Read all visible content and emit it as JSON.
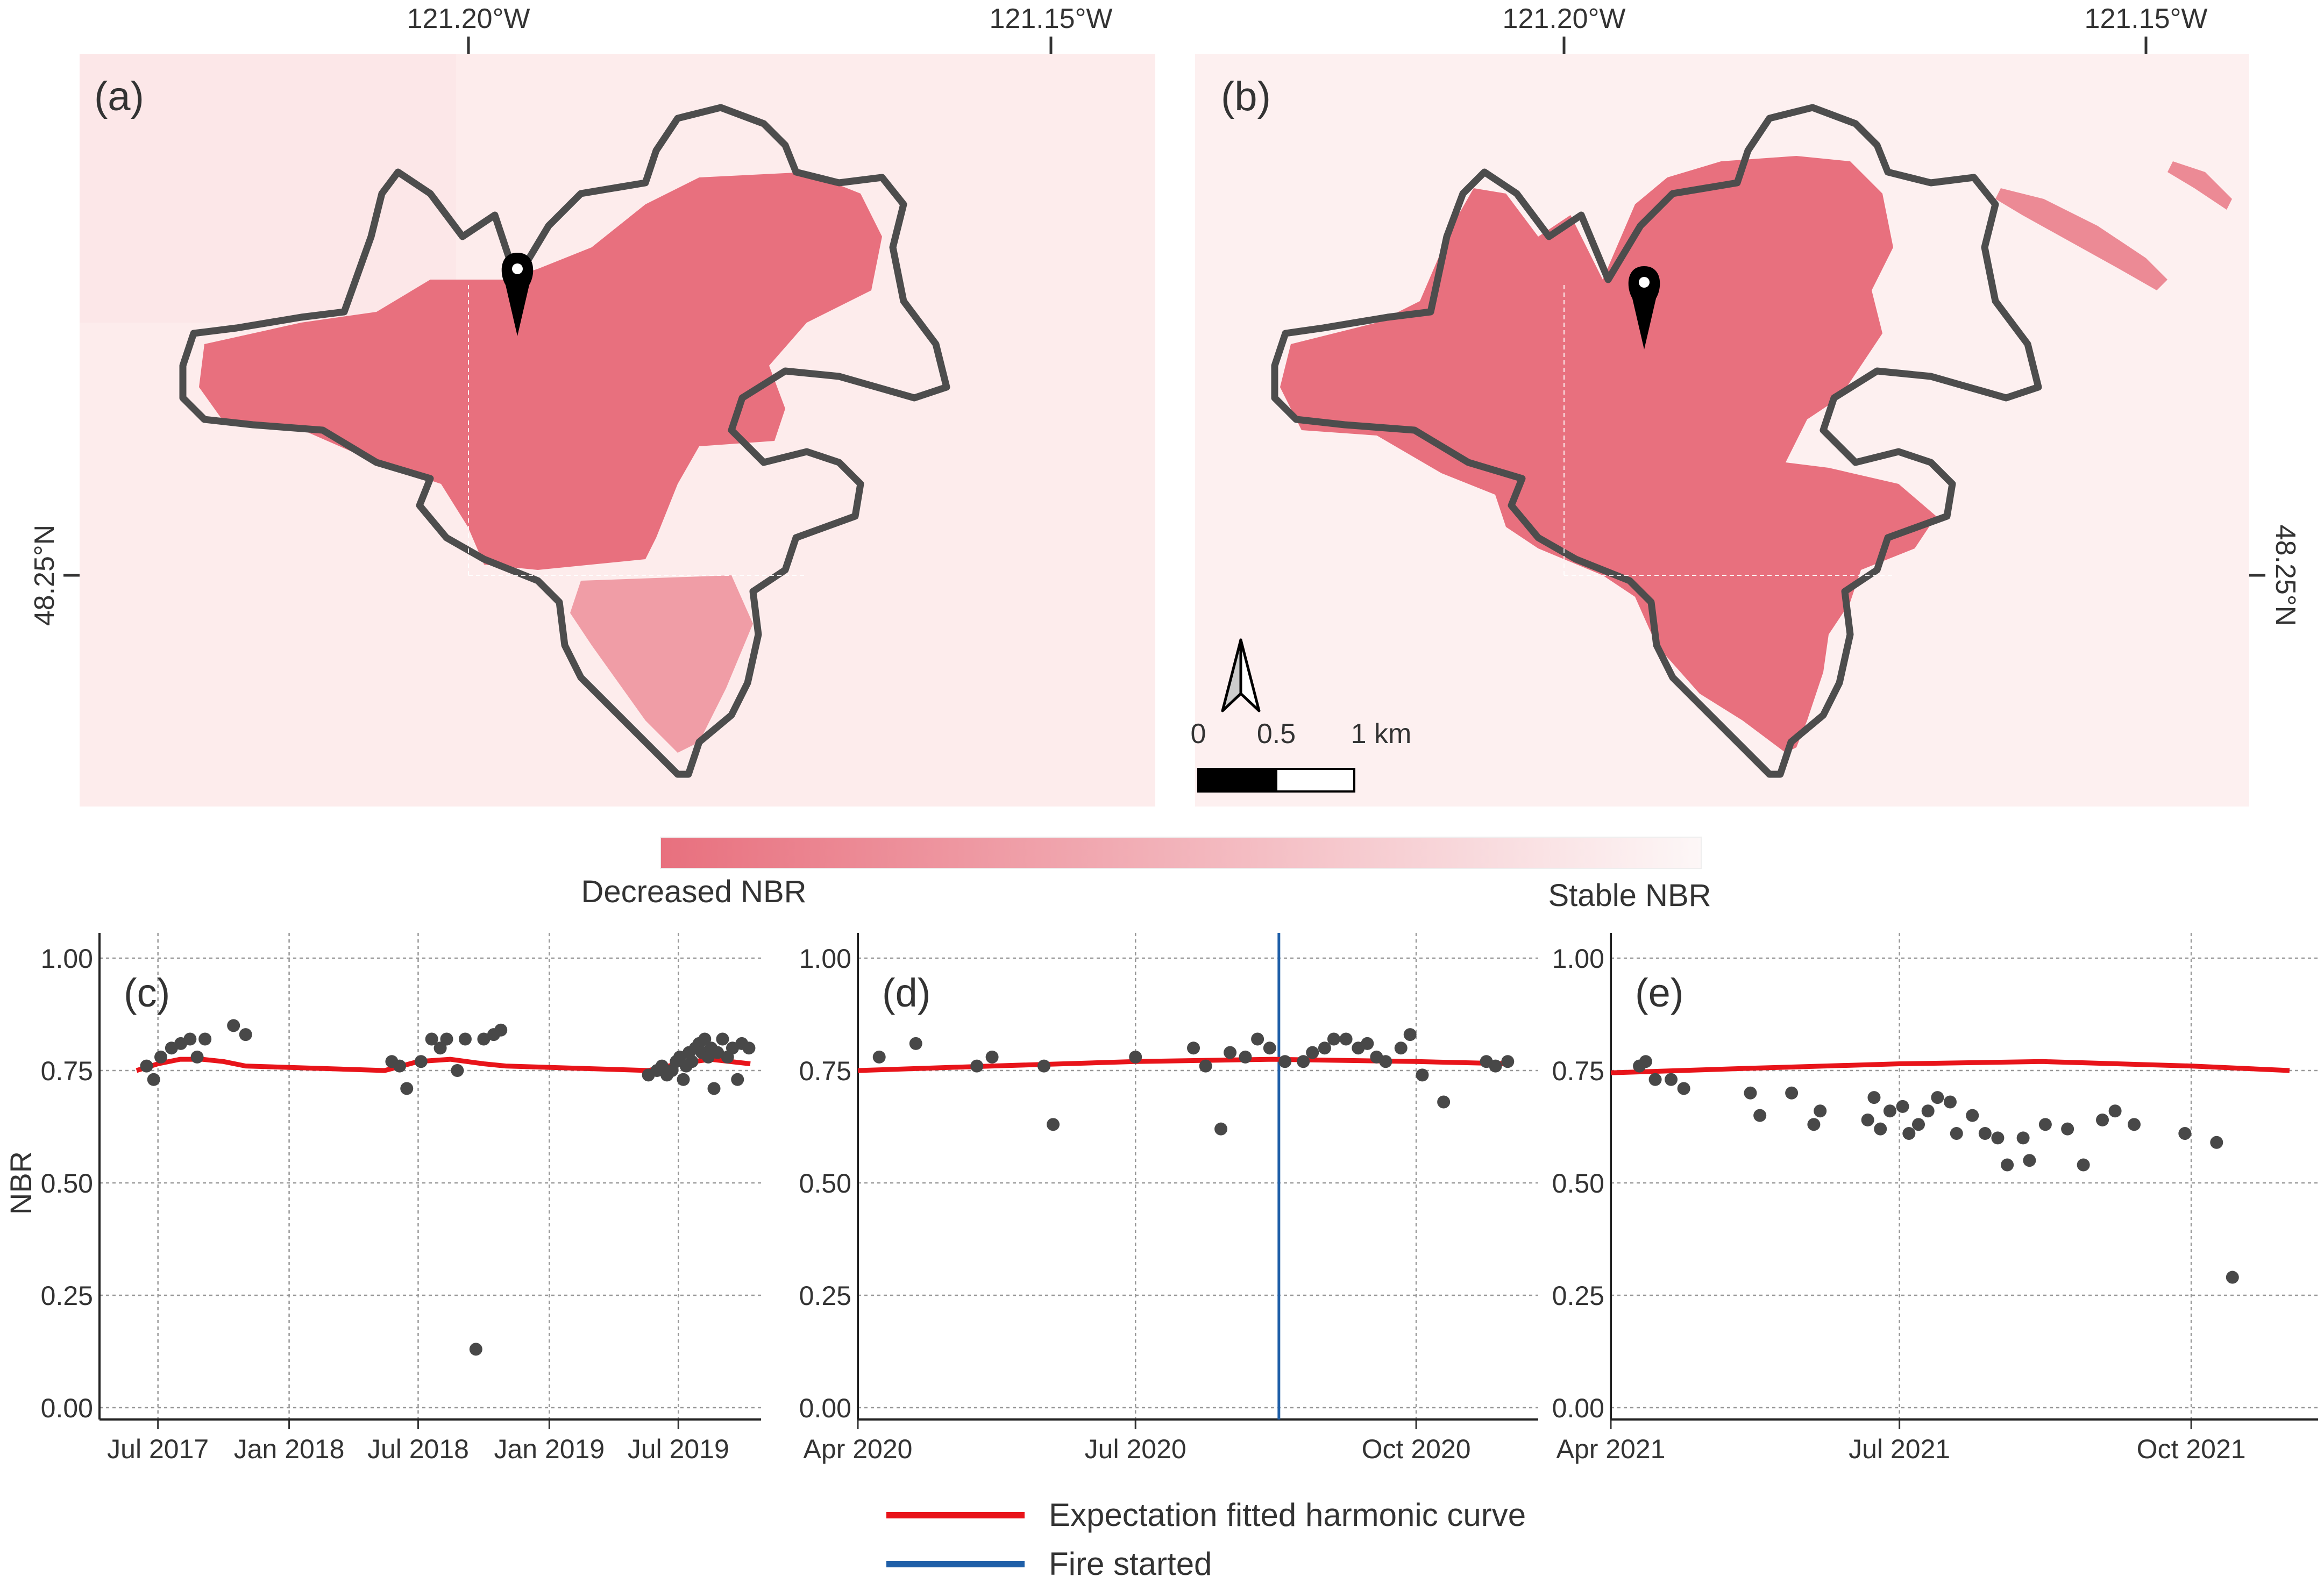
{
  "maps": [
    {
      "panel_label": "(a)",
      "lon_ticks": [
        "121.20°W",
        "121.15°W"
      ],
      "lat_tick": "48.25°N"
    },
    {
      "panel_label": "(b)",
      "lon_ticks": [
        "121.20°W",
        "121.15°W"
      ],
      "lat_tick": "48.25°N",
      "scalebar": {
        "labels": [
          "0",
          "0.5",
          "1 km"
        ]
      }
    }
  ],
  "colorbar": {
    "left_label": "Decreased NBR",
    "right_label": "Stable NBR",
    "color_low": "#e8707e",
    "color_high": "#fdf7f7"
  },
  "colors": {
    "fitted_curve": "#e8141a",
    "fire_line": "#1f5fa8",
    "points": "#484848",
    "burn": "#e8707e",
    "background_tint": "#fdecec"
  },
  "legend": {
    "items": [
      {
        "label": "Expectation fitted harmonic curve",
        "color": "#e8141a"
      },
      {
        "label": "Fire started",
        "color": "#1f5fa8"
      }
    ]
  },
  "chart_data": [
    {
      "panel_label": "(c)",
      "type": "scatter",
      "ylabel": "NBR",
      "ylim": [
        0,
        1
      ],
      "y_ticks": [
        "0.00",
        "0.25",
        "0.50",
        "0.75",
        "1.00"
      ],
      "x_range": [
        "2017-04-10",
        "2019-10-25"
      ],
      "x_ticks": [
        {
          "date": "2017-07-01",
          "label": "Jul 2017"
        },
        {
          "date": "2018-01-01",
          "label": "Jan 2018"
        },
        {
          "date": "2018-07-01",
          "label": "Jul 2018"
        },
        {
          "date": "2019-01-01",
          "label": "Jan 2019"
        },
        {
          "date": "2019-07-01",
          "label": "Jul 2019"
        }
      ],
      "grid": true,
      "points": [
        [
          "2017-06-15",
          0.76
        ],
        [
          "2017-06-25",
          0.73
        ],
        [
          "2017-07-05",
          0.78
        ],
        [
          "2017-07-20",
          0.8
        ],
        [
          "2017-08-02",
          0.81
        ],
        [
          "2017-08-15",
          0.82
        ],
        [
          "2017-08-25",
          0.78
        ],
        [
          "2017-09-05",
          0.82
        ],
        [
          "2017-10-15",
          0.85
        ],
        [
          "2017-11-01",
          0.83
        ],
        [
          "2018-05-25",
          0.77
        ],
        [
          "2018-06-05",
          0.76
        ],
        [
          "2018-06-15",
          0.71
        ],
        [
          "2018-07-05",
          0.77
        ],
        [
          "2018-07-20",
          0.82
        ],
        [
          "2018-08-01",
          0.8
        ],
        [
          "2018-08-10",
          0.82
        ],
        [
          "2018-08-25",
          0.75
        ],
        [
          "2018-09-05",
          0.82
        ],
        [
          "2018-09-20",
          0.13
        ],
        [
          "2018-10-01",
          0.82
        ],
        [
          "2018-10-15",
          0.83
        ],
        [
          "2018-10-25",
          0.84
        ],
        [
          "2019-05-20",
          0.74
        ],
        [
          "2019-06-01",
          0.75
        ],
        [
          "2019-06-08",
          0.76
        ],
        [
          "2019-06-15",
          0.74
        ],
        [
          "2019-06-22",
          0.75
        ],
        [
          "2019-06-28",
          0.77
        ],
        [
          "2019-07-03",
          0.78
        ],
        [
          "2019-07-08",
          0.73
        ],
        [
          "2019-07-12",
          0.76
        ],
        [
          "2019-07-16",
          0.79
        ],
        [
          "2019-07-20",
          0.77
        ],
        [
          "2019-07-25",
          0.8
        ],
        [
          "2019-07-30",
          0.81
        ],
        [
          "2019-08-03",
          0.79
        ],
        [
          "2019-08-07",
          0.82
        ],
        [
          "2019-08-12",
          0.78
        ],
        [
          "2019-08-16",
          0.8
        ],
        [
          "2019-08-20",
          0.71
        ],
        [
          "2019-08-25",
          0.79
        ],
        [
          "2019-09-01",
          0.82
        ],
        [
          "2019-09-08",
          0.78
        ],
        [
          "2019-09-15",
          0.8
        ],
        [
          "2019-09-22",
          0.73
        ],
        [
          "2019-09-28",
          0.81
        ],
        [
          "2019-10-08",
          0.8
        ]
      ],
      "fitted_curve": [
        [
          "2017-06-01",
          0.75
        ],
        [
          "2017-07-01",
          0.765
        ],
        [
          "2017-08-01",
          0.775
        ],
        [
          "2017-09-01",
          0.775
        ],
        [
          "2017-10-01",
          0.77
        ],
        [
          "2017-11-01",
          0.76
        ],
        [
          "2018-05-15",
          0.75
        ],
        [
          "2018-07-01",
          0.77
        ],
        [
          "2018-08-15",
          0.775
        ],
        [
          "2018-10-01",
          0.765
        ],
        [
          "2018-11-01",
          0.76
        ],
        [
          "2019-05-20",
          0.75
        ],
        [
          "2019-07-01",
          0.765
        ],
        [
          "2019-08-15",
          0.775
        ],
        [
          "2019-10-10",
          0.765
        ]
      ]
    },
    {
      "panel_label": "(d)",
      "type": "scatter",
      "ylim": [
        0,
        1
      ],
      "y_ticks": [
        "0.00",
        "0.25",
        "0.50",
        "0.75",
        "1.00"
      ],
      "x_range": [
        "2020-04-01",
        "2020-11-10"
      ],
      "x_ticks": [
        {
          "date": "2020-04-01",
          "label": "Apr 2020"
        },
        {
          "date": "2020-07-01",
          "label": "Jul 2020"
        },
        {
          "date": "2020-10-01",
          "label": "Oct 2020"
        }
      ],
      "grid": true,
      "fire_start": "2020-08-17",
      "points": [
        [
          "2020-04-08",
          0.78
        ],
        [
          "2020-04-20",
          0.81
        ],
        [
          "2020-05-10",
          0.76
        ],
        [
          "2020-05-15",
          0.78
        ],
        [
          "2020-06-01",
          0.76
        ],
        [
          "2020-06-04",
          0.63
        ],
        [
          "2020-07-01",
          0.78
        ],
        [
          "2020-07-20",
          0.8
        ],
        [
          "2020-07-24",
          0.76
        ],
        [
          "2020-07-29",
          0.62
        ],
        [
          "2020-08-01",
          0.79
        ],
        [
          "2020-08-06",
          0.78
        ],
        [
          "2020-08-10",
          0.82
        ],
        [
          "2020-08-14",
          0.8
        ],
        [
          "2020-08-19",
          0.77
        ],
        [
          "2020-08-25",
          0.77
        ],
        [
          "2020-08-28",
          0.79
        ],
        [
          "2020-09-01",
          0.8
        ],
        [
          "2020-09-04",
          0.82
        ],
        [
          "2020-09-08",
          0.82
        ],
        [
          "2020-09-12",
          0.8
        ],
        [
          "2020-09-15",
          0.81
        ],
        [
          "2020-09-18",
          0.78
        ],
        [
          "2020-09-21",
          0.77
        ],
        [
          "2020-09-26",
          0.8
        ],
        [
          "2020-09-29",
          0.83
        ],
        [
          "2020-10-03",
          0.74
        ],
        [
          "2020-10-10",
          0.68
        ],
        [
          "2020-10-24",
          0.77
        ],
        [
          "2020-10-27",
          0.76
        ],
        [
          "2020-10-31",
          0.77
        ]
      ],
      "fitted_curve": [
        [
          "2020-04-01",
          0.75
        ],
        [
          "2020-05-15",
          0.76
        ],
        [
          "2020-07-01",
          0.77
        ],
        [
          "2020-08-15",
          0.775
        ],
        [
          "2020-10-01",
          0.77
        ],
        [
          "2020-11-01",
          0.765
        ]
      ]
    },
    {
      "panel_label": "(e)",
      "type": "scatter",
      "ylim": [
        0,
        1
      ],
      "y_ticks": [
        "0.00",
        "0.25",
        "0.50",
        "0.75",
        "1.00"
      ],
      "x_range": [
        "2021-04-01",
        "2021-11-10"
      ],
      "x_ticks": [
        {
          "date": "2021-04-01",
          "label": "Apr 2021"
        },
        {
          "date": "2021-07-01",
          "label": "Jul 2021"
        },
        {
          "date": "2021-10-01",
          "label": "Oct 2021"
        }
      ],
      "grid": true,
      "points": [
        [
          "2021-04-10",
          0.76
        ],
        [
          "2021-04-12",
          0.77
        ],
        [
          "2021-04-15",
          0.73
        ],
        [
          "2021-04-20",
          0.73
        ],
        [
          "2021-04-24",
          0.71
        ],
        [
          "2021-05-15",
          0.7
        ],
        [
          "2021-05-18",
          0.65
        ],
        [
          "2021-05-28",
          0.7
        ],
        [
          "2021-06-04",
          0.63
        ],
        [
          "2021-06-06",
          0.66
        ],
        [
          "2021-06-21",
          0.64
        ],
        [
          "2021-06-23",
          0.69
        ],
        [
          "2021-06-25",
          0.62
        ],
        [
          "2021-06-28",
          0.66
        ],
        [
          "2021-07-02",
          0.67
        ],
        [
          "2021-07-04",
          0.61
        ],
        [
          "2021-07-07",
          0.63
        ],
        [
          "2021-07-10",
          0.66
        ],
        [
          "2021-07-13",
          0.69
        ],
        [
          "2021-07-17",
          0.68
        ],
        [
          "2021-07-19",
          0.61
        ],
        [
          "2021-07-24",
          0.65
        ],
        [
          "2021-07-28",
          0.61
        ],
        [
          "2021-08-01",
          0.6
        ],
        [
          "2021-08-04",
          0.54
        ],
        [
          "2021-08-09",
          0.6
        ],
        [
          "2021-08-11",
          0.55
        ],
        [
          "2021-08-16",
          0.63
        ],
        [
          "2021-08-23",
          0.62
        ],
        [
          "2021-08-28",
          0.54
        ],
        [
          "2021-09-03",
          0.64
        ],
        [
          "2021-09-07",
          0.66
        ],
        [
          "2021-09-13",
          0.63
        ],
        [
          "2021-09-29",
          0.61
        ],
        [
          "2021-10-09",
          0.59
        ],
        [
          "2021-10-14",
          0.29
        ]
      ],
      "fitted_curve": [
        [
          "2021-04-01",
          0.745
        ],
        [
          "2021-05-15",
          0.755
        ],
        [
          "2021-07-01",
          0.765
        ],
        [
          "2021-08-15",
          0.77
        ],
        [
          "2021-10-01",
          0.76
        ],
        [
          "2021-11-01",
          0.75
        ]
      ]
    }
  ]
}
